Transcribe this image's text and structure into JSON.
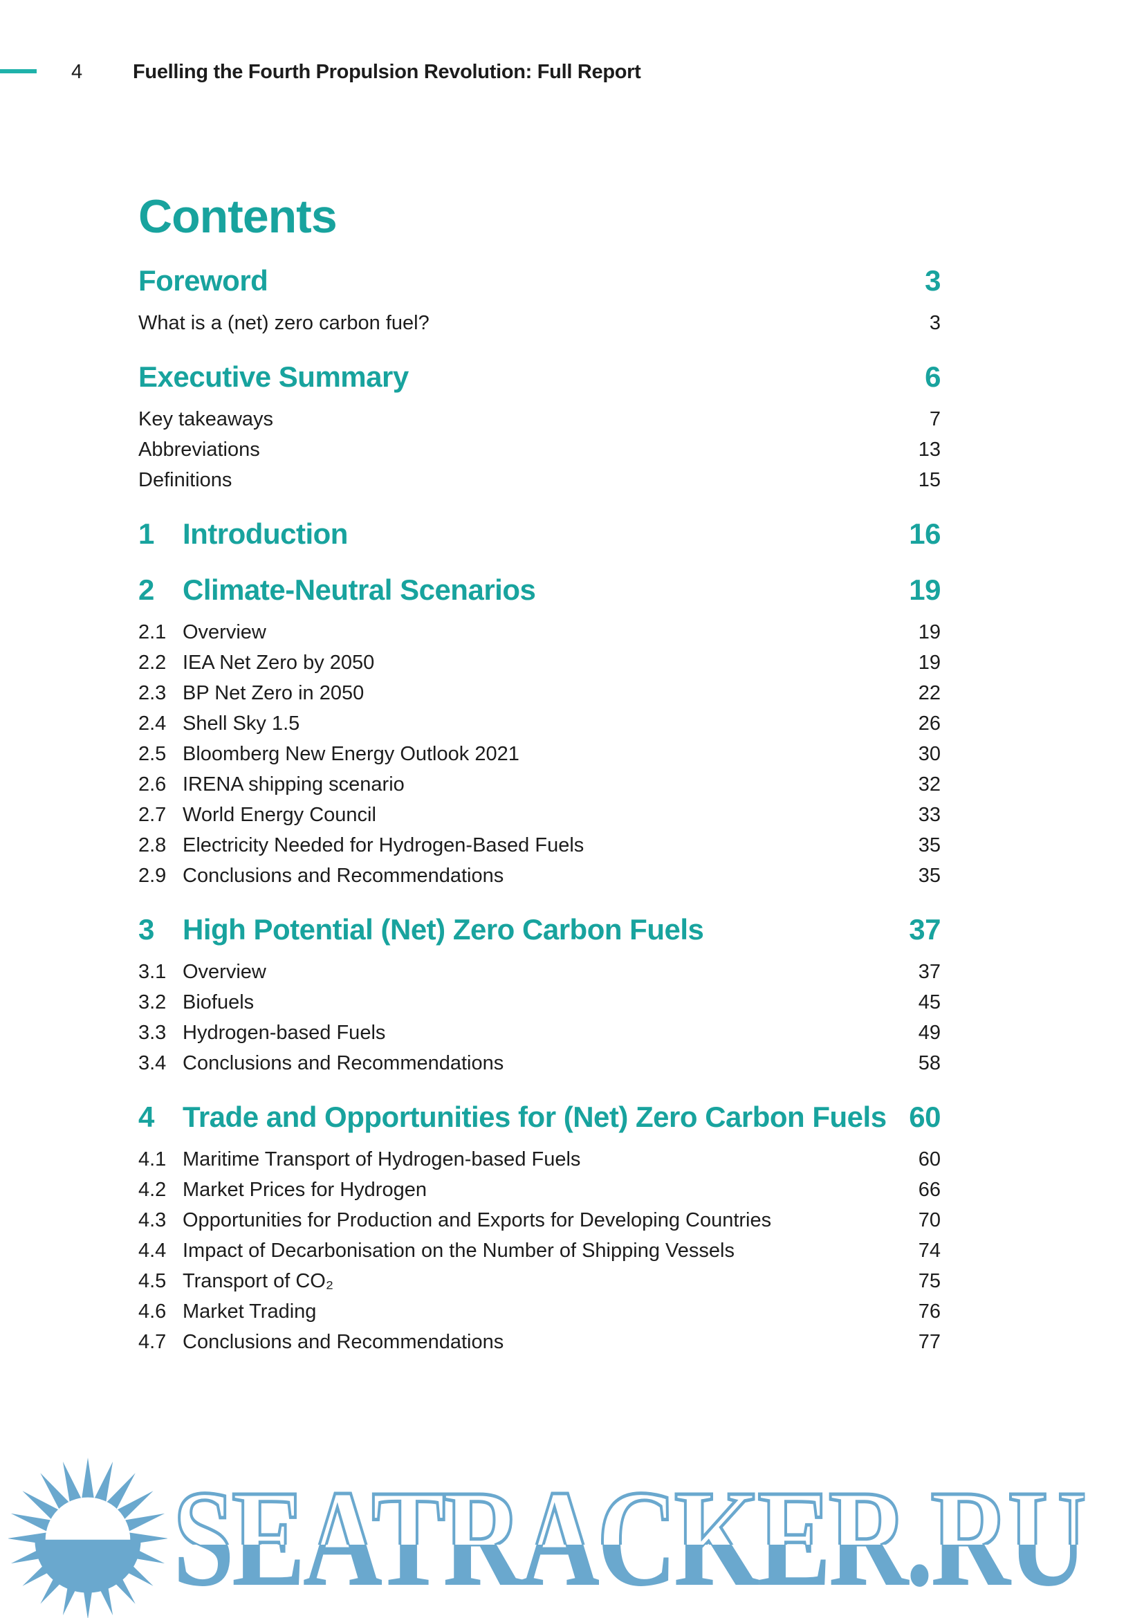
{
  "header": {
    "page_number": "4",
    "title": "Fuelling the Fourth Propulsion Revolution: Full Report"
  },
  "contents_title": "Contents",
  "colors": {
    "accent_teal": "#18a39e",
    "dash_teal": "#1fb2aa",
    "watermark_blue": "#6aa8ce",
    "body_text": "#1c1c1c"
  },
  "toc": [
    {
      "type": "heading",
      "num": "",
      "label": "Foreword",
      "page": "3"
    },
    {
      "type": "sub",
      "num": "",
      "label": "What is a (net) zero carbon fuel?",
      "page": "3"
    },
    {
      "type": "heading",
      "num": "",
      "label": "Executive Summary",
      "page": "6"
    },
    {
      "type": "sub",
      "num": "",
      "label": "Key takeaways",
      "page": "7"
    },
    {
      "type": "sub",
      "num": "",
      "label": "Abbreviations",
      "page": "13"
    },
    {
      "type": "sub",
      "num": "",
      "label": "Definitions",
      "page": "15"
    },
    {
      "type": "heading",
      "num": "1",
      "label": "Introduction",
      "page": "16"
    },
    {
      "type": "heading",
      "num": "2",
      "label": "Climate-Neutral Scenarios",
      "page": "19"
    },
    {
      "type": "sub",
      "num": "2.1",
      "label": "Overview",
      "page": "19"
    },
    {
      "type": "sub",
      "num": "2.2",
      "label": "IEA Net Zero by 2050",
      "page": "19"
    },
    {
      "type": "sub",
      "num": "2.3",
      "label": "BP Net Zero in 2050",
      "page": "22"
    },
    {
      "type": "sub",
      "num": "2.4",
      "label": "Shell Sky 1.5",
      "page": "26"
    },
    {
      "type": "sub",
      "num": "2.5",
      "label": "Bloomberg New Energy Outlook 2021",
      "page": "30"
    },
    {
      "type": "sub",
      "num": "2.6",
      "label": "IRENA shipping scenario",
      "page": "32"
    },
    {
      "type": "sub",
      "num": "2.7",
      "label": "World Energy Council",
      "page": "33"
    },
    {
      "type": "sub",
      "num": "2.8",
      "label": "Electricity Needed for Hydrogen-Based Fuels",
      "page": "35"
    },
    {
      "type": "sub",
      "num": "2.9",
      "label": "Conclusions and Recommendations",
      "page": "35"
    },
    {
      "type": "heading",
      "num": "3",
      "label": "High Potential (Net) Zero Carbon Fuels",
      "page": "37"
    },
    {
      "type": "sub",
      "num": "3.1",
      "label": "Overview",
      "page": "37"
    },
    {
      "type": "sub",
      "num": "3.2",
      "label": "Biofuels",
      "page": "45"
    },
    {
      "type": "sub",
      "num": "3.3",
      "label": "Hydrogen-based Fuels",
      "page": "49"
    },
    {
      "type": "sub",
      "num": "3.4",
      "label": "Conclusions and Recommendations",
      "page": "58"
    },
    {
      "type": "heading",
      "num": "4",
      "label": "Trade and Opportunities for (Net) Zero Carbon Fuels",
      "page": "60"
    },
    {
      "type": "sub",
      "num": "4.1",
      "label": "Maritime Transport of Hydrogen-based Fuels",
      "page": "60"
    },
    {
      "type": "sub",
      "num": "4.2",
      "label": "Market Prices for Hydrogen",
      "page": "66"
    },
    {
      "type": "sub",
      "num": "4.3",
      "label": "Opportunities for Production and Exports for Developing Countries",
      "page": "70"
    },
    {
      "type": "sub",
      "num": "4.4",
      "label": "Impact of Decarbonisation on the Number of Shipping Vessels",
      "page": "74"
    },
    {
      "type": "sub",
      "num": "4.5",
      "label": "Transport of CO₂",
      "page": "75"
    },
    {
      "type": "sub",
      "num": "4.6",
      "label": "Market Trading",
      "page": "76"
    },
    {
      "type": "sub",
      "num": "4.7",
      "label": "Conclusions and Recommendations",
      "page": "77"
    }
  ],
  "watermark": {
    "icon": "sun-icon",
    "text": "SEATRACKER.RU"
  }
}
